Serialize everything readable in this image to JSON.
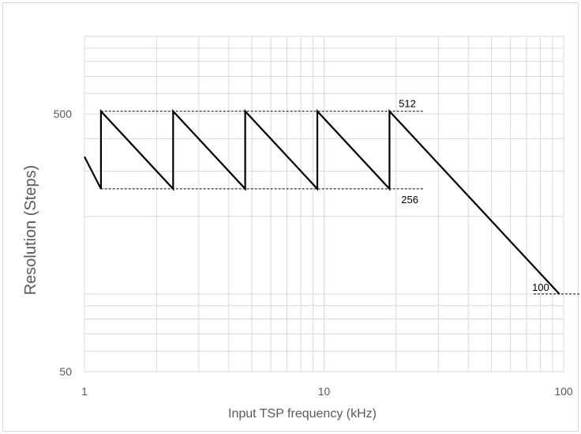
{
  "chart_data": {
    "type": "line",
    "title": "",
    "xlabel": "Input TSP frequency (kHz)",
    "ylabel": "Resolution (Steps)",
    "x_scale": "log",
    "y_scale": "log",
    "xlim": [
      1,
      100
    ],
    "ylim": [
      50,
      1000
    ],
    "x_ticks": [
      {
        "value": 1,
        "label": "1"
      },
      {
        "value": 10,
        "label": "10"
      },
      {
        "value": 100,
        "label": "100"
      }
    ],
    "y_ticks": [
      {
        "value": 50,
        "label": "50"
      },
      {
        "value": 500,
        "label": "500"
      }
    ],
    "grid": true,
    "legend": "none",
    "series": [
      {
        "x": [
          1.0,
          1.1719,
          1.1719,
          2.3438,
          2.3438,
          4.6875,
          4.6875,
          9.375,
          9.375,
          18.75,
          18.75,
          96
        ],
        "y": [
          341,
          256,
          512,
          256,
          512,
          256,
          512,
          256,
          512,
          256,
          512,
          100
        ]
      }
    ],
    "annotations": [
      {
        "label": "512",
        "value": 512,
        "x_from": 1.17,
        "x_to": 26
      },
      {
        "label": "256",
        "value": 256,
        "x_from": 1.17,
        "x_to": 26
      },
      {
        "label": "100",
        "value": 100,
        "x_from": 75,
        "x_to": 118
      }
    ],
    "colors": {
      "series": "#000000",
      "grid": "#d9d9d9",
      "text": "#595959"
    }
  }
}
